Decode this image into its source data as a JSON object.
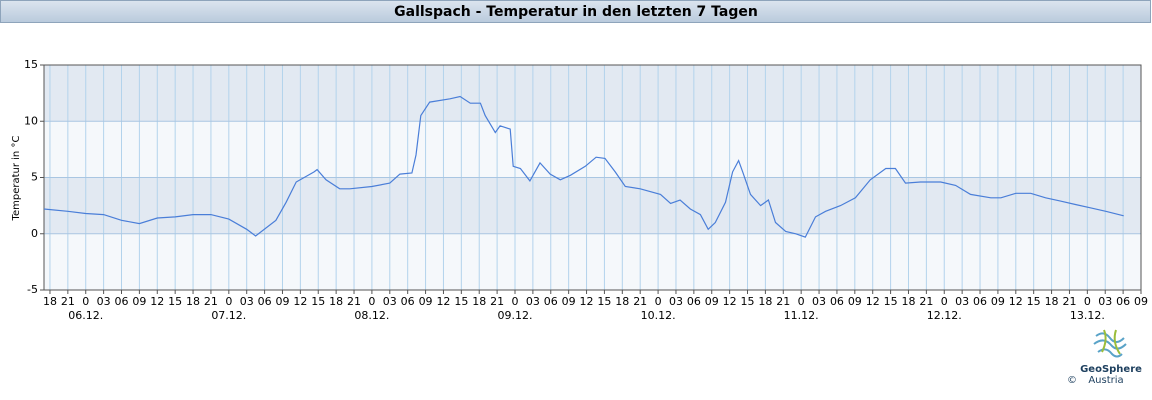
{
  "chart_data": {
    "type": "line",
    "title": "Gallspach - Temperatur in den letzten 7 Tagen",
    "y_label": "Temperatur in °C",
    "color": "#4a7ed8",
    "grid": true,
    "xlim": [
      -7,
      177
    ],
    "ylim": [
      -5,
      15
    ],
    "yticks": [
      15,
      10,
      5,
      0,
      -5
    ],
    "xticks": [
      {
        "value": -6,
        "label": "18"
      },
      {
        "value": -3,
        "label": "21"
      },
      {
        "value": 0,
        "label": "0"
      },
      {
        "value": 3,
        "label": "03"
      },
      {
        "value": 6,
        "label": "06"
      },
      {
        "value": 9,
        "label": "09"
      },
      {
        "value": 12,
        "label": "12"
      },
      {
        "value": 15,
        "label": "15"
      },
      {
        "value": 18,
        "label": "18"
      },
      {
        "value": 21,
        "label": "21"
      },
      {
        "value": 24,
        "label": "0"
      },
      {
        "value": 27,
        "label": "03"
      },
      {
        "value": 30,
        "label": "06"
      },
      {
        "value": 33,
        "label": "09"
      },
      {
        "value": 36,
        "label": "12"
      },
      {
        "value": 39,
        "label": "15"
      },
      {
        "value": 42,
        "label": "18"
      },
      {
        "value": 45,
        "label": "21"
      },
      {
        "value": 48,
        "label": "0"
      },
      {
        "value": 51,
        "label": "03"
      },
      {
        "value": 54,
        "label": "06"
      },
      {
        "value": 57,
        "label": "09"
      },
      {
        "value": 60,
        "label": "12"
      },
      {
        "value": 63,
        "label": "15"
      },
      {
        "value": 66,
        "label": "18"
      },
      {
        "value": 69,
        "label": "21"
      },
      {
        "value": 72,
        "label": "0"
      },
      {
        "value": 75,
        "label": "03"
      },
      {
        "value": 78,
        "label": "06"
      },
      {
        "value": 81,
        "label": "09"
      },
      {
        "value": 84,
        "label": "12"
      },
      {
        "value": 87,
        "label": "15"
      },
      {
        "value": 90,
        "label": "18"
      },
      {
        "value": 93,
        "label": "21"
      },
      {
        "value": 96,
        "label": "0"
      },
      {
        "value": 99,
        "label": "03"
      },
      {
        "value": 102,
        "label": "06"
      },
      {
        "value": 105,
        "label": "09"
      },
      {
        "value": 108,
        "label": "12"
      },
      {
        "value": 111,
        "label": "15"
      },
      {
        "value": 114,
        "label": "18"
      },
      {
        "value": 117,
        "label": "21"
      },
      {
        "value": 120,
        "label": "0"
      },
      {
        "value": 123,
        "label": "03"
      },
      {
        "value": 126,
        "label": "06"
      },
      {
        "value": 129,
        "label": "09"
      },
      {
        "value": 132,
        "label": "12"
      },
      {
        "value": 135,
        "label": "15"
      },
      {
        "value": 138,
        "label": "18"
      },
      {
        "value": 141,
        "label": "21"
      },
      {
        "value": 144,
        "label": "0"
      },
      {
        "value": 147,
        "label": "03"
      },
      {
        "value": 150,
        "label": "06"
      },
      {
        "value": 153,
        "label": "09"
      },
      {
        "value": 156,
        "label": "12"
      },
      {
        "value": 159,
        "label": "15"
      },
      {
        "value": 162,
        "label": "18"
      },
      {
        "value": 165,
        "label": "21"
      },
      {
        "value": 168,
        "label": "0"
      },
      {
        "value": 171,
        "label": "03"
      },
      {
        "value": 174,
        "label": "06"
      },
      {
        "value": 177,
        "label": "09"
      }
    ],
    "date_labels": [
      {
        "value": 0,
        "label": "06.12."
      },
      {
        "value": 24,
        "label": "07.12."
      },
      {
        "value": 48,
        "label": "08.12."
      },
      {
        "value": 72,
        "label": "09.12."
      },
      {
        "value": 96,
        "label": "10.12."
      },
      {
        "value": 120,
        "label": "11.12."
      },
      {
        "value": 144,
        "label": "12.12."
      },
      {
        "value": 168,
        "label": "13.12."
      }
    ],
    "x": [
      -7,
      -3,
      0,
      3,
      6,
      9,
      12,
      15,
      18,
      21,
      24,
      27,
      28.5,
      31.9,
      33.6,
      35.3,
      38.3,
      38.8,
      40.3,
      42.6,
      44.3,
      48,
      51,
      52.7,
      54.7,
      55.4,
      56.2,
      57.7,
      61.1,
      62.8,
      64.5,
      66.2,
      67,
      68.7,
      69.5,
      71.2,
      71.7,
      72.9,
      74.5,
      76.2,
      77.9,
      79.6,
      81.3,
      83.8,
      85.6,
      87.1,
      88.8,
      90.5,
      93,
      96.4,
      98.1,
      99.7,
      101.4,
      103.1,
      104.4,
      105.6,
      107.3,
      108.5,
      109.5,
      110.2,
      111.5,
      113.2,
      114.5,
      115.7,
      117.4,
      119.1,
      120.7,
      122.4,
      124.1,
      126.6,
      129.1,
      131.6,
      134.2,
      135.8,
      137.5,
      140,
      143.4,
      145.9,
      148.4,
      151.8,
      153.5,
      156,
      158.5,
      161,
      163.5,
      166,
      168.6,
      171.1,
      174.1
    ],
    "values": [
      2.2,
      2.0,
      1.8,
      1.7,
      1.2,
      0.9,
      1.4,
      1.5,
      1.7,
      1.7,
      1.3,
      0.4,
      -0.2,
      1.2,
      2.8,
      4.6,
      5.5,
      5.7,
      4.8,
      4.0,
      4.0,
      4.2,
      4.5,
      5.3,
      5.4,
      7.0,
      10.5,
      11.7,
      12.0,
      12.2,
      11.6,
      11.6,
      10.5,
      9.0,
      9.6,
      9.3,
      6.0,
      5.8,
      4.7,
      6.3,
      5.3,
      4.8,
      5.2,
      6.0,
      6.8,
      6.7,
      5.5,
      4.2,
      4.0,
      3.5,
      2.7,
      3.0,
      2.2,
      1.7,
      0.4,
      1.0,
      2.8,
      5.5,
      6.5,
      5.5,
      3.5,
      2.5,
      3.0,
      1.0,
      0.2,
      0.0,
      -0.3,
      1.5,
      2.0,
      2.5,
      3.2,
      4.8,
      5.8,
      5.8,
      4.5,
      4.6,
      4.6,
      4.3,
      3.5,
      3.2,
      3.2,
      3.6,
      3.6,
      3.2,
      2.9,
      2.6,
      2.3,
      2.0,
      1.6
    ]
  },
  "logo": {
    "name": "GeoSphere",
    "sub": "Austria",
    "copyright": "©"
  }
}
